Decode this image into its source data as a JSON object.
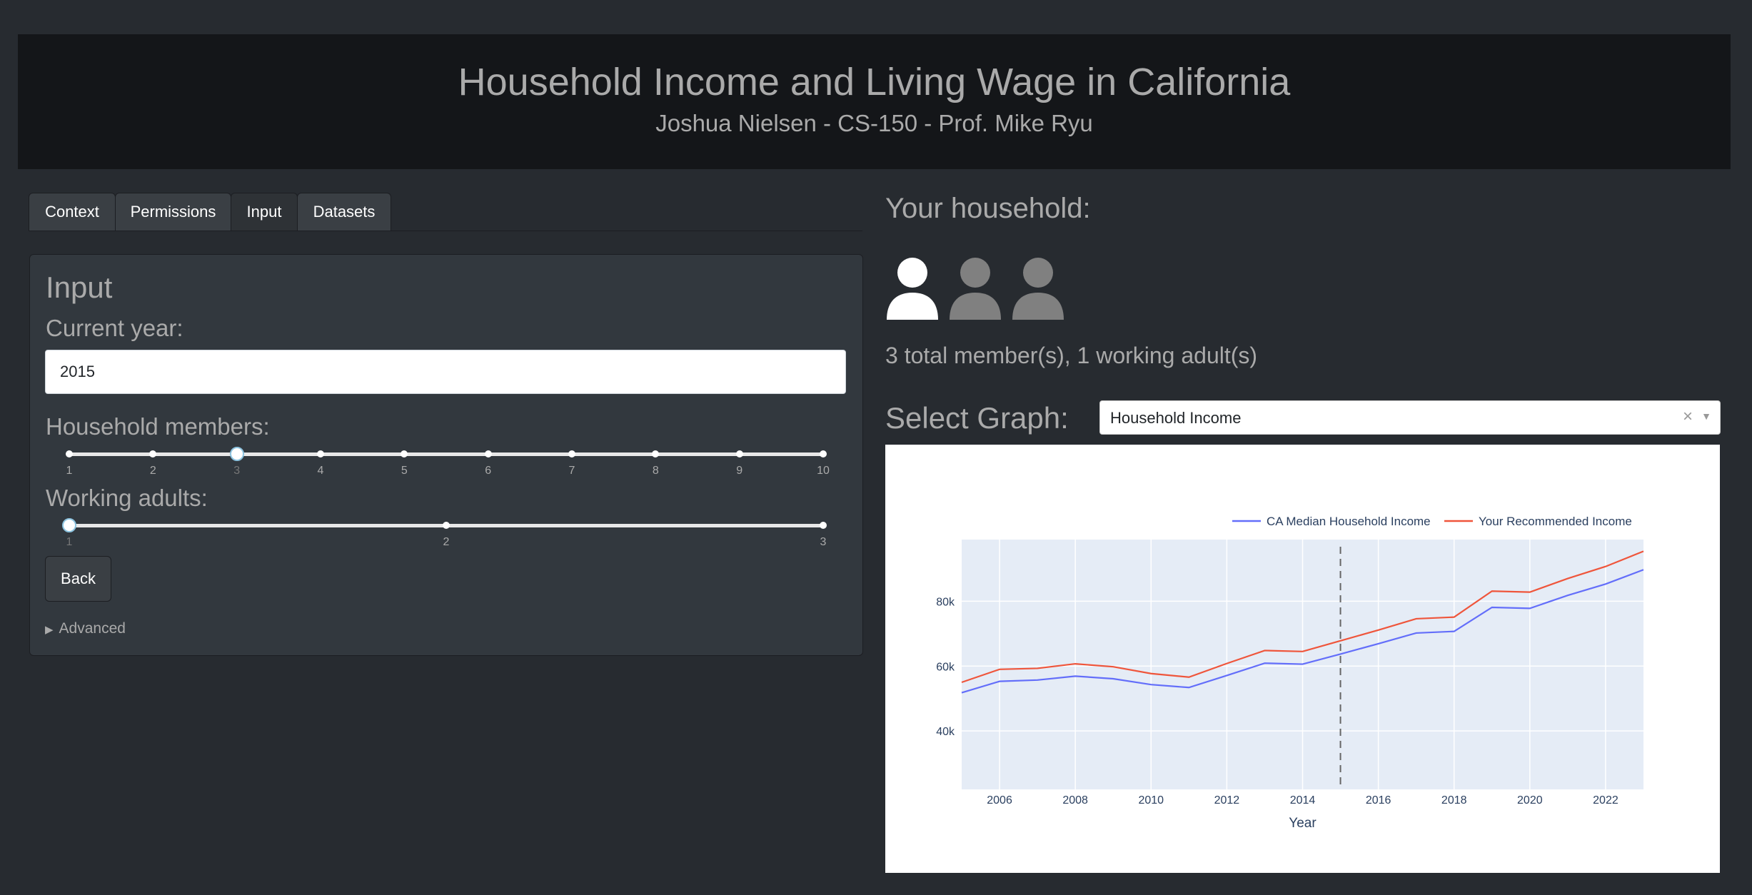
{
  "header": {
    "title": "Household Income and Living Wage in California",
    "subtitle": "Joshua Nielsen - CS-150 - Prof. Mike Ryu"
  },
  "tabs": [
    {
      "label": "Context",
      "active": false
    },
    {
      "label": "Permissions",
      "active": false
    },
    {
      "label": "Input",
      "active": true
    },
    {
      "label": "Datasets",
      "active": false
    }
  ],
  "input_panel": {
    "heading": "Input",
    "year_label": "Current year:",
    "year_value": "2015",
    "members_label": "Household members:",
    "members_ticks": [
      "1",
      "2",
      "3",
      "4",
      "5",
      "6",
      "7",
      "8",
      "9",
      "10"
    ],
    "members_value": 3,
    "adults_label": "Working adults:",
    "adults_ticks": [
      "1",
      "2",
      "3"
    ],
    "adults_value": 1,
    "back_label": "Back",
    "advanced_label": "Advanced"
  },
  "household": {
    "title": "Your household:",
    "icons": [
      "person-icon-working",
      "person-icon",
      "person-icon"
    ],
    "summary": "3 total member(s), 1 working adult(s)"
  },
  "graph_select": {
    "label": "Select Graph:",
    "value": "Household Income",
    "clear_icon": "×",
    "caret_icon": "▼"
  },
  "colors": {
    "median": "#636efa",
    "recommended": "#ef553b",
    "plot_bg": "#e5ecf6",
    "page_bg": "#272b30",
    "header_bg": "#141619"
  },
  "chart_data": {
    "type": "line",
    "title": "",
    "xlabel": "Year",
    "ylabel": "",
    "xlim": [
      2005,
      2023
    ],
    "ylim": [
      22000,
      99000
    ],
    "x_ticks": [
      2006,
      2008,
      2010,
      2012,
      2014,
      2016,
      2018,
      2020,
      2022
    ],
    "y_ticks": [
      40000,
      60000,
      80000
    ],
    "y_tick_labels": [
      "40k",
      "60k",
      "80k"
    ],
    "legend_position": "top-right",
    "grid": true,
    "marker_line_x": 2015,
    "x": [
      2005,
      2006,
      2007,
      2008,
      2009,
      2010,
      2011,
      2012,
      2013,
      2014,
      2015,
      2016,
      2017,
      2018,
      2019,
      2020,
      2021,
      2022,
      2023
    ],
    "series": [
      {
        "name": "CA Median Household Income",
        "color": "#636efa",
        "values": [
          51800,
          55300,
          55700,
          56900,
          56100,
          54300,
          53400,
          57100,
          60900,
          60600,
          63700,
          66900,
          70200,
          70700,
          78100,
          77800,
          81800,
          85300,
          89700
        ]
      },
      {
        "name": "Your Recommended Income",
        "color": "#ef553b",
        "values": [
          55000,
          59000,
          59300,
          60700,
          59800,
          57700,
          56600,
          60800,
          64800,
          64500,
          67800,
          71100,
          74600,
          75100,
          83100,
          82800,
          87000,
          90700,
          95400
        ]
      }
    ]
  }
}
